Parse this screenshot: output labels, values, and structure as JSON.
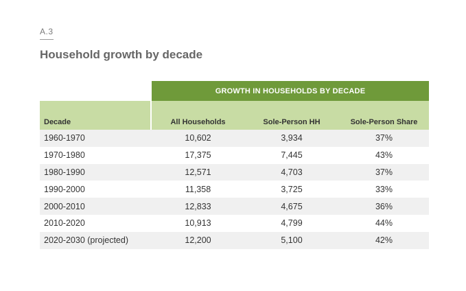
{
  "figure": {
    "label": "A.3",
    "title": "Household growth by decade"
  },
  "table": {
    "group_header": "GROWTH IN HOUSEHOLDS BY DECADE",
    "columns": [
      "Decade",
      "All Households",
      "Sole-Person HH",
      "Sole-Person Share"
    ],
    "rows": [
      [
        "1960-1970",
        "10,602",
        "3,934",
        "37%"
      ],
      [
        "1970-1980",
        "17,375",
        "7,445",
        "43%"
      ],
      [
        "1980-1990",
        "12,571",
        "4,703",
        "37%"
      ],
      [
        "1990-2000",
        "11,358",
        "3,725",
        "33%"
      ],
      [
        "2000-2010",
        "12,833",
        "4,675",
        "36%"
      ],
      [
        "2010-2020",
        "10,913",
        "4,799",
        "44%"
      ],
      [
        "2020-2030 (projected)",
        "12,200",
        "5,100",
        "42%"
      ]
    ]
  },
  "colors": {
    "group_header_bg": "#6f9a3a",
    "column_header_bg": "#c8dca4",
    "stripe_bg": "#f0f0f0"
  }
}
